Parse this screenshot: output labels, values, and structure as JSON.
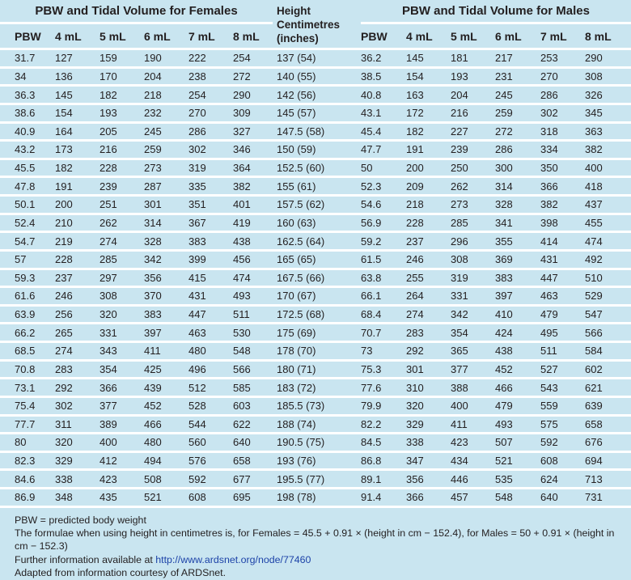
{
  "colors": {
    "background": "#c9e5f0",
    "separator": "#ffffff",
    "text": "#231f20",
    "link": "#1d43a8"
  },
  "table": {
    "female_title": "PBW and Tidal Volume for Females",
    "male_title": "PBW and Tidal Volume for Males",
    "height_header": [
      "Height",
      "Centimetres",
      "(inches)"
    ],
    "columns": [
      "PBW",
      "4 mL",
      "5 mL",
      "6 mL",
      "7 mL",
      "8 mL"
    ],
    "rows": [
      {
        "female": [
          "31.7",
          "127",
          "159",
          "190",
          "222",
          "254"
        ],
        "height": "137 (54)",
        "male": [
          "36.2",
          "145",
          "181",
          "217",
          "253",
          "290"
        ]
      },
      {
        "female": [
          "34",
          "136",
          "170",
          "204",
          "238",
          "272"
        ],
        "height": "140 (55)",
        "male": [
          "38.5",
          "154",
          "193",
          "231",
          "270",
          "308"
        ]
      },
      {
        "female": [
          "36.3",
          "145",
          "182",
          "218",
          "254",
          "290"
        ],
        "height": "142 (56)",
        "male": [
          "40.8",
          "163",
          "204",
          "245",
          "286",
          "326"
        ]
      },
      {
        "female": [
          "38.6",
          "154",
          "193",
          "232",
          "270",
          "309"
        ],
        "height": "145 (57)",
        "male": [
          "43.1",
          "172",
          "216",
          "259",
          "302",
          "345"
        ]
      },
      {
        "female": [
          "40.9",
          "164",
          "205",
          "245",
          "286",
          "327"
        ],
        "height": "147.5 (58)",
        "male": [
          "45.4",
          "182",
          "227",
          "272",
          "318",
          "363"
        ]
      },
      {
        "female": [
          "43.2",
          "173",
          "216",
          "259",
          "302",
          "346"
        ],
        "height": "150 (59)",
        "male": [
          "47.7",
          "191",
          "239",
          "286",
          "334",
          "382"
        ]
      },
      {
        "female": [
          "45.5",
          "182",
          "228",
          "273",
          "319",
          "364"
        ],
        "height": "152.5 (60)",
        "male": [
          "50",
          "200",
          "250",
          "300",
          "350",
          "400"
        ]
      },
      {
        "female": [
          "47.8",
          "191",
          "239",
          "287",
          "335",
          "382"
        ],
        "height": "155 (61)",
        "male": [
          "52.3",
          "209",
          "262",
          "314",
          "366",
          "418"
        ]
      },
      {
        "female": [
          "50.1",
          "200",
          "251",
          "301",
          "351",
          "401"
        ],
        "height": "157.5 (62)",
        "male": [
          "54.6",
          "218",
          "273",
          "328",
          "382",
          "437"
        ]
      },
      {
        "female": [
          "52.4",
          "210",
          "262",
          "314",
          "367",
          "419"
        ],
        "height": "160 (63)",
        "male": [
          "56.9",
          "228",
          "285",
          "341",
          "398",
          "455"
        ]
      },
      {
        "female": [
          "54.7",
          "219",
          "274",
          "328",
          "383",
          "438"
        ],
        "height": "162.5 (64)",
        "male": [
          "59.2",
          "237",
          "296",
          "355",
          "414",
          "474"
        ]
      },
      {
        "female": [
          "57",
          "228",
          "285",
          "342",
          "399",
          "456"
        ],
        "height": "165 (65)",
        "male": [
          "61.5",
          "246",
          "308",
          "369",
          "431",
          "492"
        ]
      },
      {
        "female": [
          "59.3",
          "237",
          "297",
          "356",
          "415",
          "474"
        ],
        "height": "167.5 (66)",
        "male": [
          "63.8",
          "255",
          "319",
          "383",
          "447",
          "510"
        ]
      },
      {
        "female": [
          "61.6",
          "246",
          "308",
          "370",
          "431",
          "493"
        ],
        "height": "170 (67)",
        "male": [
          "66.1",
          "264",
          "331",
          "397",
          "463",
          "529"
        ]
      },
      {
        "female": [
          "63.9",
          "256",
          "320",
          "383",
          "447",
          "511"
        ],
        "height": "172.5 (68)",
        "male": [
          "68.4",
          "274",
          "342",
          "410",
          "479",
          "547"
        ]
      },
      {
        "female": [
          "66.2",
          "265",
          "331",
          "397",
          "463",
          "530"
        ],
        "height": "175 (69)",
        "male": [
          "70.7",
          "283",
          "354",
          "424",
          "495",
          "566"
        ]
      },
      {
        "female": [
          "68.5",
          "274",
          "343",
          "411",
          "480",
          "548"
        ],
        "height": "178 (70)",
        "male": [
          "73",
          "292",
          "365",
          "438",
          "511",
          "584"
        ]
      },
      {
        "female": [
          "70.8",
          "283",
          "354",
          "425",
          "496",
          "566"
        ],
        "height": "180 (71)",
        "male": [
          "75.3",
          "301",
          "377",
          "452",
          "527",
          "602"
        ]
      },
      {
        "female": [
          "73.1",
          "292",
          "366",
          "439",
          "512",
          "585"
        ],
        "height": "183 (72)",
        "male": [
          "77.6",
          "310",
          "388",
          "466",
          "543",
          "621"
        ]
      },
      {
        "female": [
          "75.4",
          "302",
          "377",
          "452",
          "528",
          "603"
        ],
        "height": "185.5 (73)",
        "male": [
          "79.9",
          "320",
          "400",
          "479",
          "559",
          "639"
        ]
      },
      {
        "female": [
          "77.7",
          "311",
          "389",
          "466",
          "544",
          "622"
        ],
        "height": "188 (74)",
        "male": [
          "82.2",
          "329",
          "411",
          "493",
          "575",
          "658"
        ]
      },
      {
        "female": [
          "80",
          "320",
          "400",
          "480",
          "560",
          "640"
        ],
        "height": "190.5 (75)",
        "male": [
          "84.5",
          "338",
          "423",
          "507",
          "592",
          "676"
        ]
      },
      {
        "female": [
          "82.3",
          "329",
          "412",
          "494",
          "576",
          "658"
        ],
        "height": "193 (76)",
        "male": [
          "86.8",
          "347",
          "434",
          "521",
          "608",
          "694"
        ]
      },
      {
        "female": [
          "84.6",
          "338",
          "423",
          "508",
          "592",
          "677"
        ],
        "height": "195.5 (77)",
        "male": [
          "89.1",
          "356",
          "446",
          "535",
          "624",
          "713"
        ]
      },
      {
        "female": [
          "86.9",
          "348",
          "435",
          "521",
          "608",
          "695"
        ],
        "height": "198 (78)",
        "male": [
          "91.4",
          "366",
          "457",
          "548",
          "640",
          "731"
        ]
      }
    ]
  },
  "footer": {
    "line1": "PBW = predicted body weight",
    "line2": "The formulae when using height in centimetres is, for Females = 45.5 + 0.91 × (height in cm − 152.4), for Males = 50 + 0.91 × (height in cm − 152.3)",
    "line3_prefix": "Further information available at ",
    "line3_link": "http://www.ardsnet.org/node/77460",
    "line4": "Adapted from information courtesy of ARDSnet."
  }
}
